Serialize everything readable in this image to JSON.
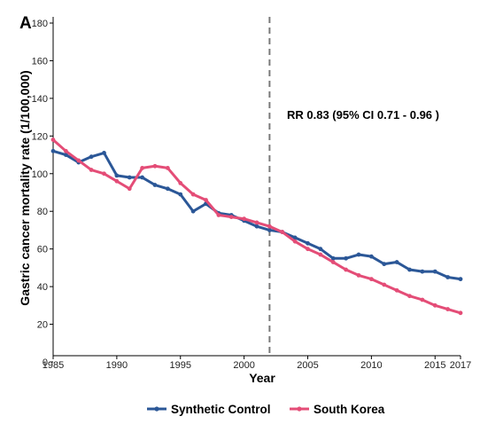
{
  "chart_data": {
    "type": "line",
    "panel_label": "A",
    "xlabel": "Year",
    "ylabel": "Gastric cancer mortality rate (1/100,000)",
    "xlim": [
      1985,
      2017
    ],
    "ylim": [
      0,
      180
    ],
    "x_ticks": [
      1985,
      1990,
      1995,
      2000,
      2005,
      2010,
      2015,
      2017
    ],
    "y_ticks": [
      0,
      20,
      40,
      60,
      80,
      100,
      120,
      140,
      160,
      180
    ],
    "grid": false,
    "legend_position": "bottom",
    "reference_line": {
      "x": 2002,
      "style": "dashed",
      "color": "#7a7a7a"
    },
    "annotation": "RR  0.83 (95% CI  0.71 - 0.96 )",
    "x": [
      1985,
      1986,
      1987,
      1988,
      1989,
      1990,
      1991,
      1992,
      1993,
      1994,
      1995,
      1996,
      1997,
      1998,
      1999,
      2000,
      2001,
      2002,
      2003,
      2004,
      2005,
      2006,
      2007,
      2008,
      2009,
      2010,
      2011,
      2012,
      2013,
      2014,
      2015,
      2016,
      2017
    ],
    "series": [
      {
        "name": "Synthetic Control",
        "color": "#2b5797",
        "values": [
          112,
          110,
          106,
          109,
          111,
          99,
          98,
          98,
          94,
          92,
          89,
          80,
          84,
          79,
          78,
          75,
          72,
          70,
          69,
          66,
          63,
          60,
          55,
          55,
          57,
          56,
          52,
          53,
          49,
          48,
          48,
          45,
          44
        ]
      },
      {
        "name": "South Korea",
        "color": "#e44d77",
        "values": [
          118,
          112,
          107,
          102,
          100,
          96,
          92,
          103,
          104,
          103,
          95,
          89,
          86,
          78,
          77,
          76,
          74,
          72,
          69,
          64,
          60,
          57,
          53,
          49,
          46,
          44,
          41,
          38,
          35,
          33,
          30,
          28,
          26
        ]
      }
    ]
  }
}
